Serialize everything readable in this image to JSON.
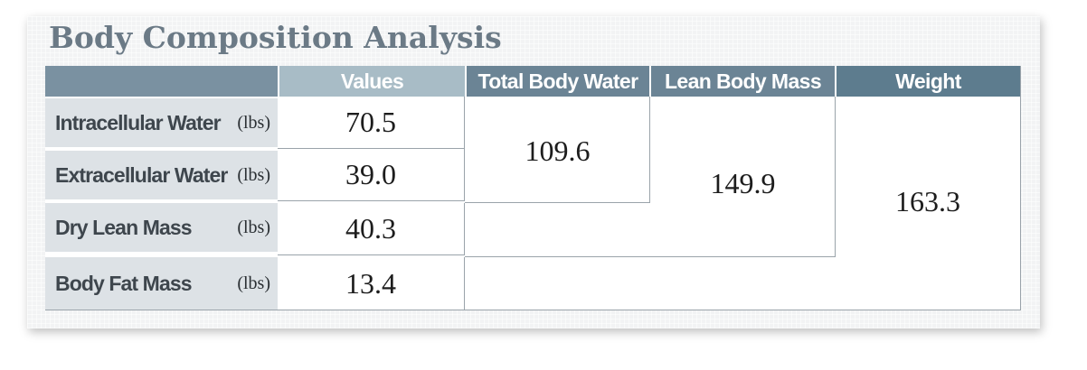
{
  "title": "Body Composition Analysis",
  "headers": {
    "values": "Values",
    "total_body_water": "Total Body Water",
    "lean_body_mass": "Lean Body Mass",
    "weight": "Weight"
  },
  "rows": [
    {
      "label": "Intracellular Water",
      "unit": "(lbs)",
      "value": "70.5"
    },
    {
      "label": "Extracellular Water",
      "unit": "(lbs)",
      "value": "39.0"
    },
    {
      "label": "Dry Lean Mass",
      "unit": "(lbs)",
      "value": "40.3"
    },
    {
      "label": "Body Fat Mass",
      "unit": "(lbs)",
      "value": "13.4"
    }
  ],
  "totals": {
    "total_body_water": "109.6",
    "lean_body_mass": "149.9",
    "weight": "163.3"
  },
  "colors": {
    "title": "#6b7a86",
    "header_dark": "#6b8495",
    "header_light": "#a8bcc6",
    "label_bg": "#dde2e6"
  }
}
